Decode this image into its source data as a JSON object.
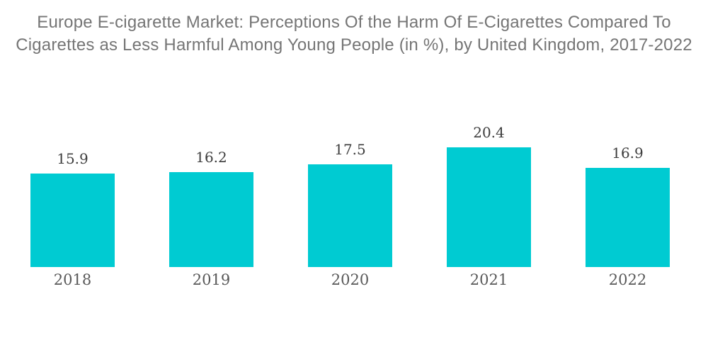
{
  "chart_data": {
    "type": "bar",
    "title": "Europe E-cigarette Market: Perceptions Of the Harm Of E-Cigarettes Compared To Cigarettes as Less Harmful Among Young People (in %), by United Kingdom, 2017-2022",
    "title_lines": [
      "Europe E-cigarette Market: Perceptions Of the Harm Of E-Cigarettes Compared To",
      "Cigarettes as Less Harmful Among Young People (in %), by United Kingdom, 2017-2022"
    ],
    "categories": [
      "2018",
      "2019",
      "2020",
      "2021",
      "2022"
    ],
    "values": [
      15.9,
      16.2,
      17.5,
      20.4,
      16.9
    ],
    "xlabel": "",
    "ylabel": "",
    "ylim": [
      0,
      22
    ],
    "grid": false,
    "legend": "none",
    "value_labels_shown": true,
    "colors": {
      "bar": "#00cbd2",
      "value_label": "#3d3d3d",
      "category_label": "#595959",
      "title": "#757575",
      "background": "#ffffff"
    }
  }
}
